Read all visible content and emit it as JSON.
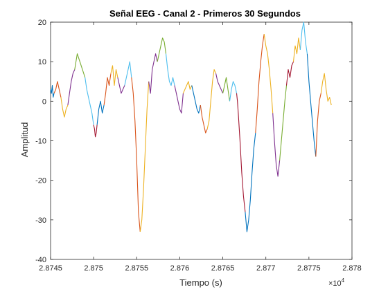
{
  "chart_data": {
    "type": "line",
    "title": "Señal EEG - Canal 2 - Primeros 30 Segundos",
    "xlabel": "Tiempo (s)",
    "ylabel": "Amplitud",
    "x_multiplier_label": "×10",
    "x_multiplier_exponent": "4",
    "xlim": [
      2.8745,
      2.878
    ],
    "ylim": [
      -40,
      20
    ],
    "grid": false,
    "x_tick_values": [
      2.8745,
      2.875,
      2.8755,
      2.876,
      2.8765,
      2.877,
      2.8775,
      2.878
    ],
    "x_tick_labels": [
      "2.8745",
      "2.875",
      "2.8755",
      "2.876",
      "2.8765",
      "2.877",
      "2.8775",
      "2.878"
    ],
    "y_tick_values": [
      -40,
      -30,
      -20,
      -10,
      0,
      10,
      20
    ],
    "y_tick_labels": [
      "-40",
      "-30",
      "-20",
      "-10",
      "0",
      "10",
      "20"
    ],
    "series_colors": [
      "#0072BD",
      "#D95319",
      "#EDB120",
      "#7E2F8E",
      "#77AC30",
      "#4DBEEE",
      "#A2142F"
    ],
    "series": [
      {
        "color": "#0072BD",
        "x": [
          2.8745,
          2.87451,
          2.87452,
          2.87453,
          2.87454
        ],
        "y": [
          3,
          2,
          4,
          1,
          2
        ]
      },
      {
        "color": "#D95319",
        "x": [
          2.87454,
          2.87456,
          2.87458,
          2.8746,
          2.87462
        ],
        "y": [
          2,
          3,
          5,
          3,
          1
        ]
      },
      {
        "color": "#EDB120",
        "x": [
          2.87462,
          2.87464,
          2.87466,
          2.87468,
          2.8747
        ],
        "y": [
          1,
          -2,
          -4,
          -2,
          -1
        ]
      },
      {
        "color": "#7E2F8E",
        "x": [
          2.8747,
          2.87472,
          2.87474,
          2.87476,
          2.87478
        ],
        "y": [
          -1,
          2,
          5,
          7,
          8
        ]
      },
      {
        "color": "#77AC30",
        "x": [
          2.87478,
          2.87481,
          2.87484,
          2.87487,
          2.8749
        ],
        "y": [
          8,
          12,
          10,
          8,
          6
        ]
      },
      {
        "color": "#4DBEEE",
        "x": [
          2.8749,
          2.87492,
          2.87495,
          2.87498,
          2.875
        ],
        "y": [
          6,
          3,
          0,
          -3,
          -6
        ]
      },
      {
        "color": "#A2142F",
        "x": [
          2.875,
          2.87501,
          2.87502,
          2.87503,
          2.87504
        ],
        "y": [
          -6,
          -7,
          -9,
          -8,
          -6
        ]
      },
      {
        "color": "#0072BD",
        "x": [
          2.87504,
          2.87506,
          2.87508,
          2.8751,
          2.87512
        ],
        "y": [
          -6,
          -2,
          0,
          -3,
          -1
        ]
      },
      {
        "color": "#D95319",
        "x": [
          2.87512,
          2.87514,
          2.87516,
          2.87518,
          2.8752
        ],
        "y": [
          -1,
          2,
          6,
          4,
          7
        ]
      },
      {
        "color": "#EDB120",
        "x": [
          2.8752,
          2.87522,
          2.87524,
          2.87526,
          2.87528
        ],
        "y": [
          7,
          9,
          4,
          8,
          6
        ]
      },
      {
        "color": "#7E2F8E",
        "x": [
          2.87528,
          2.8753,
          2.87532,
          2.87534,
          2.87536
        ],
        "y": [
          6,
          4,
          2,
          3,
          4
        ]
      },
      {
        "color": "#4DBEEE",
        "x": [
          2.87536,
          2.87538,
          2.8754,
          2.87542,
          2.87544
        ],
        "y": [
          4,
          6,
          8,
          10,
          6
        ]
      },
      {
        "color": "#D95319",
        "x": [
          2.87544,
          2.87545,
          2.87546,
          2.87548,
          2.8755,
          2.87552,
          2.87554
        ],
        "y": [
          6,
          4,
          2,
          -5,
          -15,
          -28,
          -33
        ]
      },
      {
        "color": "#EDB120",
        "x": [
          2.87554,
          2.87556,
          2.87558,
          2.8756,
          2.87562,
          2.87564
        ],
        "y": [
          -33,
          -30,
          -22,
          -12,
          -2,
          5
        ]
      },
      {
        "color": "#7E2F8E",
        "x": [
          2.87564,
          2.87566,
          2.87568,
          2.8757,
          2.87572,
          2.87574
        ],
        "y": [
          5,
          2,
          8,
          10,
          12,
          10
        ]
      },
      {
        "color": "#77AC30",
        "x": [
          2.87574,
          2.87576,
          2.87578,
          2.8758,
          2.87582,
          2.87584
        ],
        "y": [
          10,
          12,
          14,
          16,
          15,
          12
        ]
      },
      {
        "color": "#4DBEEE",
        "x": [
          2.87584,
          2.87586,
          2.87588,
          2.8759,
          2.87592,
          2.87594
        ],
        "y": [
          12,
          8,
          5,
          4,
          6,
          4
        ]
      },
      {
        "color": "#7E2F8E",
        "x": [
          2.87594,
          2.87596,
          2.87598,
          2.876,
          2.87602,
          2.87604
        ],
        "y": [
          4,
          2,
          0,
          -2,
          -3,
          2
        ]
      },
      {
        "color": "#EDB120",
        "x": [
          2.87604,
          2.87606,
          2.87608,
          2.8761,
          2.87612,
          2.87614
        ],
        "y": [
          2,
          3,
          4,
          5,
          3,
          4
        ]
      },
      {
        "color": "#0072BD",
        "x": [
          2.87614,
          2.87616,
          2.87618,
          2.8762,
          2.87622,
          2.87624
        ],
        "y": [
          4,
          2,
          0,
          -2,
          -3,
          -1
        ]
      },
      {
        "color": "#D95319",
        "x": [
          2.87624,
          2.87626,
          2.87628,
          2.8763,
          2.87632
        ],
        "y": [
          -1,
          -4,
          -6,
          -8,
          -7
        ]
      },
      {
        "color": "#EDB120",
        "x": [
          2.87632,
          2.87634,
          2.87636,
          2.87638,
          2.8764,
          2.87642
        ],
        "y": [
          -7,
          -5,
          0,
          5,
          8,
          7
        ]
      },
      {
        "color": "#7E2F8E",
        "x": [
          2.87642,
          2.87644,
          2.87646,
          2.87648,
          2.8765
        ],
        "y": [
          7,
          5,
          4,
          3,
          2
        ]
      },
      {
        "color": "#77AC30",
        "x": [
          2.8765,
          2.87652,
          2.87654,
          2.87656,
          2.87658
        ],
        "y": [
          2,
          4,
          6,
          3,
          0
        ]
      },
      {
        "color": "#4DBEEE",
        "x": [
          2.87658,
          2.8766,
          2.87662,
          2.87664,
          2.87666
        ],
        "y": [
          0,
          3,
          5,
          4,
          2
        ]
      },
      {
        "color": "#A2142F",
        "x": [
          2.87666,
          2.87667,
          2.87668,
          2.8767,
          2.87672,
          2.87674,
          2.87676
        ],
        "y": [
          2,
          0,
          -3,
          -10,
          -18,
          -24,
          -28
        ]
      },
      {
        "color": "#0072BD",
        "x": [
          2.87676,
          2.87678,
          2.8768,
          2.87682,
          2.87684,
          2.87686,
          2.87688
        ],
        "y": [
          -28,
          -33,
          -30,
          -25,
          -18,
          -12,
          -8
        ]
      },
      {
        "color": "#D95319",
        "x": [
          2.87688,
          2.8769,
          2.87692,
          2.87694,
          2.87696,
          2.87698
        ],
        "y": [
          -8,
          -2,
          5,
          10,
          14,
          17
        ]
      },
      {
        "color": "#EDB120",
        "x": [
          2.87698,
          2.877,
          2.87702,
          2.87704,
          2.87706,
          2.87708
        ],
        "y": [
          17,
          14,
          12,
          8,
          3,
          -3
        ]
      },
      {
        "color": "#7E2F8E",
        "x": [
          2.87708,
          2.8771,
          2.87712,
          2.87714,
          2.87716
        ],
        "y": [
          -3,
          -10,
          -16,
          -19,
          -15
        ]
      },
      {
        "color": "#77AC30",
        "x": [
          2.87716,
          2.87718,
          2.8772,
          2.87722,
          2.87724
        ],
        "y": [
          -15,
          -10,
          -5,
          0,
          4
        ]
      },
      {
        "color": "#A2142F",
        "x": [
          2.87724,
          2.87726,
          2.87728,
          2.8773,
          2.87732
        ],
        "y": [
          4,
          8,
          6,
          9,
          10
        ]
      },
      {
        "color": "#EDB120",
        "x": [
          2.87732,
          2.87734,
          2.87736,
          2.87738,
          2.8774
        ],
        "y": [
          10,
          14,
          12,
          16,
          13
        ]
      },
      {
        "color": "#4DBEEE",
        "x": [
          2.8774,
          2.87742,
          2.87744,
          2.87746,
          2.87748
        ],
        "y": [
          13,
          18,
          20,
          15,
          12
        ]
      },
      {
        "color": "#0072BD",
        "x": [
          2.87748,
          2.8775,
          2.87752,
          2.87754,
          2.87756,
          2.87758
        ],
        "y": [
          12,
          5,
          0,
          -5,
          -10,
          -14
        ]
      },
      {
        "color": "#D95319",
        "x": [
          2.87758,
          2.8776,
          2.87762,
          2.87764
        ],
        "y": [
          -14,
          -5,
          0,
          2
        ]
      },
      {
        "color": "#EDB120",
        "x": [
          2.87764,
          2.87766,
          2.87768,
          2.8777,
          2.87772,
          2.87774,
          2.87776
        ],
        "y": [
          2,
          5,
          7,
          3,
          0,
          1,
          -1
        ]
      }
    ]
  }
}
